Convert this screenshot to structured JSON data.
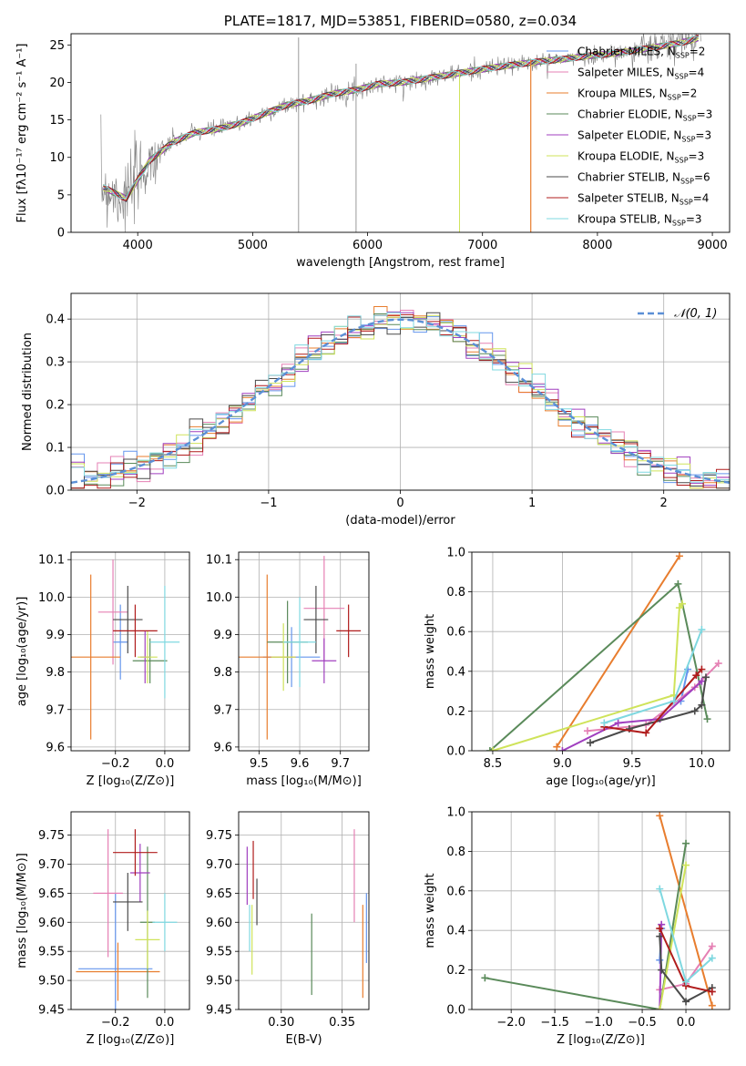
{
  "chart_data": [
    {
      "id": "spectrum",
      "type": "line",
      "title": "PLATE=1817, MJD=53851, FIBERID=0580, z=0.034",
      "xlabel": "wavelength [Angstrom, rest frame]",
      "ylabel": "Flux [fλ10⁻¹⁷ erg cm⁻² s⁻¹ A⁻¹]",
      "xlim": [
        3420,
        9150
      ],
      "ylim": [
        0,
        26.5
      ],
      "xticks": [
        4000,
        5000,
        6000,
        7000,
        8000,
        9000
      ],
      "yticks": [
        0,
        5,
        10,
        15,
        20,
        25
      ],
      "grid": false,
      "legend_position": "top-right",
      "data_x": [
        3700,
        3900,
        4100,
        4300,
        4500,
        4700,
        4900,
        5100,
        5300,
        5500,
        5700,
        5900,
        6100,
        6300,
        6500,
        6700,
        6900,
        7100,
        7300,
        7500,
        7700,
        7900,
        8100,
        8300,
        8500,
        8700,
        8900
      ],
      "data_y": [
        6.0,
        4.5,
        9.5,
        12.0,
        13.3,
        13.8,
        14.6,
        15.8,
        17.0,
        17.6,
        18.5,
        19.0,
        19.8,
        20.0,
        20.5,
        21.0,
        21.5,
        22.0,
        22.4,
        22.8,
        23.1,
        23.5,
        23.8,
        24.2,
        24.7,
        25.2,
        26.0
      ],
      "series": [
        {
          "name": "Chabrier MILES, N_SSP=2",
          "label_base": "Chabrier MILES, N",
          "label_val": "=2",
          "color": "#6495ed"
        },
        {
          "name": "Salpeter MILES, N_SSP=4",
          "label_base": "Salpeter MILES, N",
          "label_val": "=4",
          "color": "#e580b4"
        },
        {
          "name": "Kroupa MILES, N_SSP=2",
          "label_base": "Kroupa MILES, N",
          "label_val": "=2",
          "color": "#e87d2e"
        },
        {
          "name": "Chabrier ELODIE, N_SSP=3",
          "label_base": "Chabrier ELODIE, N",
          "label_val": "=3",
          "color": "#5a8a5a"
        },
        {
          "name": "Salpeter ELODIE, N_SSP=3",
          "label_base": "Salpeter ELODIE, N",
          "label_val": "=3",
          "color": "#a03fbf"
        },
        {
          "name": "Kroupa ELODIE, N_SSP=3",
          "label_base": "Kroupa ELODIE, N",
          "label_val": "=3",
          "color": "#cfe35a"
        },
        {
          "name": "Chabrier STELIB, N_SSP=6",
          "label_base": "Chabrier STELIB, N",
          "label_val": "=6",
          "color": "#4a4a4a"
        },
        {
          "name": "Salpeter STELIB, N_SSP=4",
          "label_base": "Salpeter STELIB, N",
          "label_val": "=4",
          "color": "#b01c1c"
        },
        {
          "name": "Kroupa STELIB, N_SSP=3",
          "label_base": "Kroupa STELIB, N",
          "label_val": "=3",
          "color": "#7fd8e0"
        }
      ],
      "ssp_subscript": "SSP"
    },
    {
      "id": "residuals",
      "type": "line",
      "title": "",
      "xlabel": "(data-model)/error",
      "ylabel": "Normed distribution",
      "xlim": [
        -2.5,
        2.5
      ],
      "ylim": [
        0,
        0.46
      ],
      "xticks": [
        -2,
        -1,
        0,
        1,
        2
      ],
      "yticks": [
        0.0,
        0.1,
        0.2,
        0.3,
        0.4
      ],
      "grid": true,
      "legend_position": "top-right",
      "legend": "𝒩(0, 1)",
      "gaussian": {
        "mean": 0,
        "sigma": 1,
        "color": "#5b8fd6"
      },
      "histogram_colors": [
        "#6495ed",
        "#e580b4",
        "#e87d2e",
        "#5a8a5a",
        "#a03fbf",
        "#cfe35a",
        "#4a4a4a",
        "#b01c1c",
        "#7fd8e0"
      ]
    },
    {
      "id": "age_vs_Z",
      "type": "scatter",
      "xlabel": "Z [log₁₀(Z/Z⊙)]",
      "ylabel": "age  [log₁₀(age/yr)]",
      "xlim": [
        -0.38,
        0.1
      ],
      "ylim": [
        9.59,
        10.12
      ],
      "xticks": [
        -0.2,
        0.0
      ],
      "yticks": [
        9.6,
        9.7,
        9.8,
        9.9,
        10.0,
        10.1
      ],
      "grid": true,
      "points": [
        {
          "x": -0.18,
          "y": 9.88,
          "xerr": 0.03,
          "yerr": 0.1,
          "color": "#6495ed"
        },
        {
          "x": -0.21,
          "y": 9.96,
          "xerr": 0.06,
          "yerr": 0.14,
          "color": "#e580b4"
        },
        {
          "x": -0.3,
          "y": 9.84,
          "xerr": 0.12,
          "yerr": 0.22,
          "color": "#e87d2e"
        },
        {
          "x": -0.06,
          "y": 9.83,
          "xerr": 0.07,
          "yerr": 0.06,
          "color": "#5a8a5a"
        },
        {
          "x": -0.08,
          "y": 9.84,
          "xerr": 0.02,
          "yerr": 0.07,
          "color": "#a03fbf"
        },
        {
          "x": -0.07,
          "y": 9.84,
          "xerr": 0.04,
          "yerr": 0.07,
          "color": "#cfe35a"
        },
        {
          "x": -0.15,
          "y": 9.94,
          "xerr": 0.06,
          "yerr": 0.09,
          "color": "#4a4a4a"
        },
        {
          "x": -0.12,
          "y": 9.91,
          "xerr": 0.09,
          "yerr": 0.07,
          "color": "#b01c1c"
        },
        {
          "x": 0.0,
          "y": 9.88,
          "xerr": 0.06,
          "yerr": 0.15,
          "color": "#7fd8e0"
        }
      ]
    },
    {
      "id": "age_vs_mass",
      "type": "scatter",
      "xlabel": "mass [log₁₀(M/M⊙)]",
      "ylabel": "",
      "xlim": [
        9.45,
        9.77
      ],
      "ylim": [
        9.59,
        10.12
      ],
      "xticks": [
        9.5,
        9.6,
        9.7
      ],
      "yticks": [
        9.6,
        9.7,
        9.8,
        9.9,
        10.0,
        10.1
      ],
      "grid": true,
      "points": [
        {
          "x": 9.58,
          "y": 9.84,
          "xerr": 0.07,
          "yerr": 0.08,
          "color": "#6495ed"
        },
        {
          "x": 9.66,
          "y": 9.97,
          "xerr": 0.05,
          "yerr": 0.14,
          "color": "#e580b4"
        },
        {
          "x": 9.52,
          "y": 9.84,
          "xerr": 0.07,
          "yerr": 0.22,
          "color": "#e87d2e"
        },
        {
          "x": 9.57,
          "y": 9.88,
          "xerr": 0.05,
          "yerr": 0.11,
          "color": "#5a8a5a"
        },
        {
          "x": 9.66,
          "y": 9.83,
          "xerr": 0.03,
          "yerr": 0.06,
          "color": "#a03fbf"
        },
        {
          "x": 9.56,
          "y": 9.84,
          "xerr": 0.03,
          "yerr": 0.09,
          "color": "#cfe35a"
        },
        {
          "x": 9.64,
          "y": 9.94,
          "xerr": 0.03,
          "yerr": 0.09,
          "color": "#4a4a4a"
        },
        {
          "x": 9.72,
          "y": 9.91,
          "xerr": 0.03,
          "yerr": 0.07,
          "color": "#b01c1c"
        },
        {
          "x": 9.6,
          "y": 9.88,
          "xerr": 0.04,
          "yerr": 0.12,
          "color": "#7fd8e0"
        }
      ]
    },
    {
      "id": "mass_weight_vs_age",
      "type": "line",
      "xlabel": "age  [log₁₀(age/yr)]",
      "ylabel": "mass weight",
      "xlim": [
        8.35,
        10.2
      ],
      "ylim": [
        0,
        1.0
      ],
      "xticks": [
        8.5,
        9.0,
        9.5,
        10.0
      ],
      "yticks": [
        0.0,
        0.2,
        0.4,
        0.6,
        0.8,
        1.0
      ],
      "grid": true,
      "series": [
        {
          "color": "#6495ed",
          "x": [
            9.85,
            9.9
          ],
          "y": [
            0.25,
            0.41
          ]
        },
        {
          "color": "#e580b4",
          "x": [
            9.18,
            9.6,
            9.95,
            10.12
          ],
          "y": [
            0.1,
            0.13,
            0.32,
            0.44
          ]
        },
        {
          "color": "#e87d2e",
          "x": [
            8.96,
            9.84
          ],
          "y": [
            0.02,
            0.98
          ]
        },
        {
          "color": "#5a8a5a",
          "x": [
            8.48,
            9.83,
            10.04
          ],
          "y": [
            0.0,
            0.84,
            0.16
          ]
        },
        {
          "color": "#a03fbf",
          "x": [
            9.0,
            9.4,
            9.7,
            10.0
          ],
          "y": [
            0.0,
            0.14,
            0.16,
            0.35
          ]
        },
        {
          "color": "#cfe35a",
          "x": [
            8.5,
            9.8,
            9.84,
            9.86
          ],
          "y": [
            0.0,
            0.28,
            0.72,
            0.74
          ]
        },
        {
          "color": "#4a4a4a",
          "x": [
            9.2,
            9.48,
            9.95,
            10.0,
            10.03
          ],
          "y": [
            0.04,
            0.11,
            0.2,
            0.23,
            0.37
          ]
        },
        {
          "color": "#b01c1c",
          "x": [
            9.3,
            9.6,
            9.96,
            10.0
          ],
          "y": [
            0.12,
            0.09,
            0.38,
            0.41
          ]
        },
        {
          "color": "#7fd8e0",
          "x": [
            9.3,
            9.8,
            10.0
          ],
          "y": [
            0.14,
            0.25,
            0.61
          ]
        }
      ]
    },
    {
      "id": "mass_vs_Z",
      "type": "scatter",
      "xlabel": "Z [log₁₀(Z/Z⊙)]",
      "ylabel": "mass [log₁₀(M/M⊙)]",
      "xlim": [
        -0.38,
        0.1
      ],
      "ylim": [
        9.45,
        9.79
      ],
      "xticks": [
        -0.2,
        0.0
      ],
      "yticks": [
        9.45,
        9.5,
        9.55,
        9.6,
        9.65,
        9.7,
        9.75
      ],
      "grid": true,
      "points": [
        {
          "x": -0.2,
          "y": 9.52,
          "xerr": 0.15,
          "yerr": 0.13,
          "color": "#6495ed"
        },
        {
          "x": -0.23,
          "y": 9.65,
          "xerr": 0.06,
          "yerr": 0.11,
          "color": "#e580b4"
        },
        {
          "x": -0.19,
          "y": 9.515,
          "xerr": 0.17,
          "yerr": 0.05,
          "color": "#e87d2e"
        },
        {
          "x": -0.07,
          "y": 9.6,
          "xerr": 0.03,
          "yerr": 0.13,
          "color": "#5a8a5a"
        },
        {
          "x": -0.1,
          "y": 9.685,
          "xerr": 0.04,
          "yerr": 0.05,
          "color": "#a03fbf"
        },
        {
          "x": -0.07,
          "y": 9.57,
          "xerr": 0.05,
          "yerr": 0.05,
          "color": "#cfe35a"
        },
        {
          "x": -0.15,
          "y": 9.635,
          "xerr": 0.06,
          "yerr": 0.05,
          "color": "#4a4a4a"
        },
        {
          "x": -0.12,
          "y": 9.72,
          "xerr": 0.09,
          "yerr": 0.04,
          "color": "#b01c1c"
        },
        {
          "x": 0.0,
          "y": 9.6,
          "xerr": 0.05,
          "yerr": 0.05,
          "color": "#7fd8e0"
        }
      ]
    },
    {
      "id": "mass_vs_ebv",
      "type": "scatter",
      "xlabel": "E(B-V)",
      "ylabel": "",
      "xlim": [
        0.265,
        0.372
      ],
      "ylim": [
        9.45,
        9.79
      ],
      "xticks": [
        0.3,
        0.35
      ],
      "yticks": [
        9.45,
        9.5,
        9.55,
        9.6,
        9.65,
        9.7,
        9.75
      ],
      "grid": true,
      "points": [
        {
          "x": 0.37,
          "y": 9.59,
          "xerr": 0,
          "yerr": 0.06,
          "color": "#6495ed"
        },
        {
          "x": 0.36,
          "y": 9.68,
          "xerr": 0,
          "yerr": 0.08,
          "color": "#e580b4"
        },
        {
          "x": 0.367,
          "y": 9.55,
          "xerr": 0,
          "yerr": 0.08,
          "color": "#e87d2e"
        },
        {
          "x": 0.325,
          "y": 9.545,
          "xerr": 0,
          "yerr": 0.07,
          "color": "#5a8a5a"
        },
        {
          "x": 0.272,
          "y": 9.68,
          "xerr": 0,
          "yerr": 0.05,
          "color": "#a03fbf"
        },
        {
          "x": 0.276,
          "y": 9.57,
          "xerr": 0,
          "yerr": 0.06,
          "color": "#cfe35a"
        },
        {
          "x": 0.28,
          "y": 9.635,
          "xerr": 0,
          "yerr": 0.04,
          "color": "#4a4a4a"
        },
        {
          "x": 0.277,
          "y": 9.69,
          "xerr": 0,
          "yerr": 0.05,
          "color": "#b01c1c"
        },
        {
          "x": 0.274,
          "y": 9.59,
          "xerr": 0,
          "yerr": 0.04,
          "color": "#7fd8e0"
        }
      ]
    },
    {
      "id": "mass_weight_vs_Z",
      "type": "line",
      "xlabel": "Z [log₁₀(Z/Z⊙)]",
      "ylabel": "mass weight",
      "xlim": [
        -2.45,
        0.5
      ],
      "ylim": [
        0,
        1.0
      ],
      "xticks": [
        -2.0,
        -1.5,
        -1.0,
        -0.5,
        0.0
      ],
      "yticks": [
        0.0,
        0.2,
        0.4,
        0.6,
        0.8,
        1.0
      ],
      "grid": true,
      "series": [
        {
          "color": "#6495ed",
          "x": [
            -0.3,
            -0.28
          ],
          "y": [
            0.25,
            0.41
          ]
        },
        {
          "color": "#e580b4",
          "x": [
            -0.3,
            0.0,
            0.3
          ],
          "y": [
            0.1,
            0.13,
            0.32
          ]
        },
        {
          "color": "#e87d2e",
          "x": [
            -0.3,
            0.3
          ],
          "y": [
            0.98,
            0.02
          ]
        },
        {
          "color": "#5a8a5a",
          "x": [
            -2.3,
            -0.3,
            0.0
          ],
          "y": [
            0.16,
            0.0,
            0.84
          ]
        },
        {
          "color": "#a03fbf",
          "x": [
            -0.3,
            -0.28
          ],
          "y": [
            0.0,
            0.43
          ]
        },
        {
          "color": "#cfe35a",
          "x": [
            -0.3,
            0.0
          ],
          "y": [
            0.0,
            0.73
          ]
        },
        {
          "color": "#4a4a4a",
          "x": [
            -0.3,
            -0.28,
            0.0,
            0.3
          ],
          "y": [
            0.37,
            0.2,
            0.04,
            0.11
          ]
        },
        {
          "color": "#b01c1c",
          "x": [
            -0.3,
            0.0,
            0.3
          ],
          "y": [
            0.41,
            0.12,
            0.09
          ]
        },
        {
          "color": "#7fd8e0",
          "x": [
            -0.3,
            0.0,
            0.3
          ],
          "y": [
            0.61,
            0.14,
            0.26
          ]
        }
      ]
    }
  ]
}
